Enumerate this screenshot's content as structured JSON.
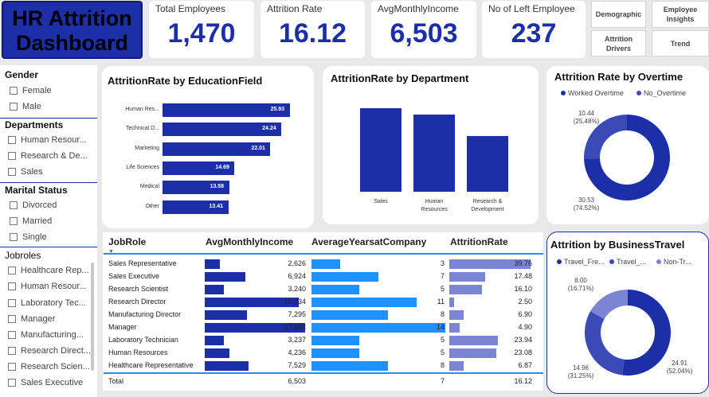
{
  "title": "HR Attrition Dashboard",
  "kpis": [
    {
      "label": "Total Employees",
      "value": "1,470"
    },
    {
      "label": "Attrition Rate",
      "value": "16.12"
    },
    {
      "label": "AvgMonthlyIncome",
      "value": "6,503"
    },
    {
      "label": "No of Left Employee",
      "value": "237"
    }
  ],
  "nav": {
    "demographic": "Demographic",
    "employee_insights": "Employee Insights",
    "attrition_drivers": "Attrition Drivers",
    "trend": "Trend"
  },
  "slicers": {
    "gender": {
      "title": "Gender",
      "items": [
        "Female",
        "Male"
      ]
    },
    "departments": {
      "title": "Departments",
      "items": [
        "Human Resour...",
        "Research & De...",
        "Sales"
      ]
    },
    "marital": {
      "title": "Marital Status",
      "items": [
        "Divorced",
        "Married",
        "Single"
      ]
    },
    "jobroles": {
      "title": "Jobroles",
      "items": [
        "Healthcare Rep...",
        "Human Resour...",
        "Laboratory Tec...",
        "Manager",
        "Manufacturing...",
        "Research Direct...",
        "Research Scien...",
        "Sales Executive"
      ]
    }
  },
  "colors": {
    "primary": "#1c2fa8",
    "mid": "#3a4bb8",
    "light": "#7a86d4",
    "cyan": "#1e90ff"
  },
  "chart_data": [
    {
      "type": "bar",
      "orientation": "horizontal",
      "title": "AttritionRate by EducationField",
      "categories": [
        "Human Res...",
        "Technical D...",
        "Marketing",
        "Life Sciences",
        "Medical",
        "Other"
      ],
      "values": [
        25.93,
        24.24,
        22.01,
        14.69,
        13.58,
        13.41
      ]
    },
    {
      "type": "bar",
      "title": "AttritionRate by Department",
      "categories": [
        "Sales",
        "Human Resources",
        "Research & Development"
      ],
      "values": [
        20.63,
        19.05,
        13.84
      ]
    },
    {
      "type": "pie",
      "title": "Attrition Rate by Overtime",
      "legend": [
        "Worked Overtime",
        "No_Overtime"
      ],
      "values": [
        30.53,
        10.44
      ],
      "labels": [
        "30.53\n(74.52%)",
        "10.44\n(25.48%)"
      ]
    },
    {
      "type": "pie",
      "title": "Attrition by BusinessTravel",
      "legend": [
        "Travel_Fre...",
        "Travel_...",
        "Non-Tr..."
      ],
      "values": [
        24.91,
        14.96,
        8.0
      ],
      "labels": [
        "24.91\n(52.04%)",
        "14.96\n(31.25%)",
        "8.00\n(16.71%)"
      ]
    },
    {
      "type": "table",
      "columns": [
        "JobRole",
        "AvgMonthlyIncome",
        "AverageYearsatCompany",
        "AttritionRate"
      ],
      "rows": [
        [
          "Sales Representative",
          "2,626",
          "3",
          "39.76"
        ],
        [
          "Sales Executive",
          "6,924",
          "7",
          "17.48"
        ],
        [
          "Research Scientist",
          "3,240",
          "5",
          "16.10"
        ],
        [
          "Research Director",
          "16,034",
          "11",
          "2.50"
        ],
        [
          "Manufacturing Director",
          "7,295",
          "8",
          "6.90"
        ],
        [
          "Manager",
          "17,182",
          "14",
          "4.90"
        ],
        [
          "Laboratory Technician",
          "3,237",
          "5",
          "23.94"
        ],
        [
          "Human Resources",
          "4,236",
          "5",
          "23.08"
        ],
        [
          "Healthcare Representative",
          "7,529",
          "8",
          "6.87"
        ]
      ],
      "total": [
        "Total",
        "6,503",
        "7",
        "16.12"
      ]
    }
  ]
}
